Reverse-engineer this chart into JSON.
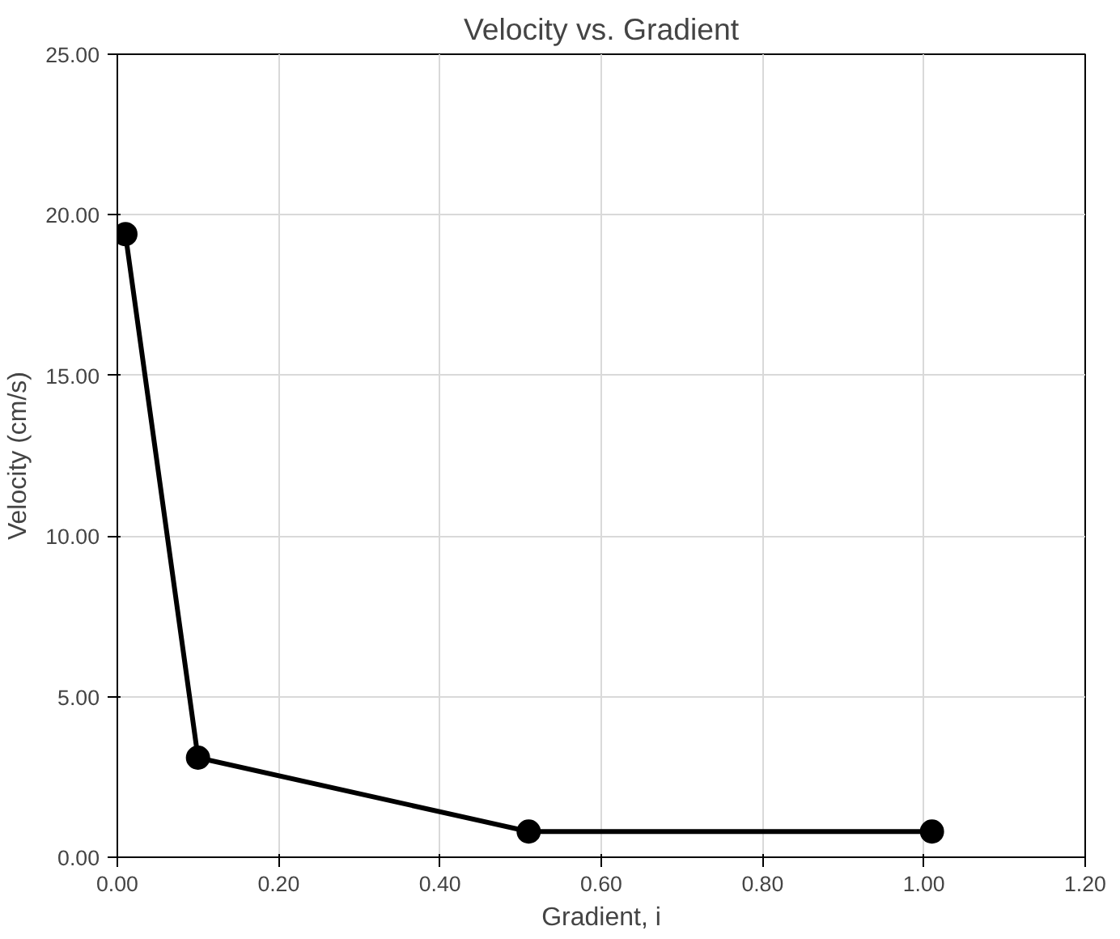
{
  "chart_data": {
    "type": "line",
    "title": "Velocity vs. Gradient",
    "xlabel": "Gradient, i",
    "ylabel": "Velocity (cm/s)",
    "x": [
      0.01,
      0.1,
      0.51,
      1.01
    ],
    "series": [
      {
        "color": "#000000",
        "values": [
          19.4,
          3.1,
          0.8,
          0.8
        ]
      }
    ],
    "marker": "circle",
    "line_style": "solid",
    "grid": true,
    "xlim": [
      0,
      1.2
    ],
    "xticks": [
      {
        "value": 0,
        "label": "0.00"
      },
      {
        "value": 0.2,
        "label": "0.20"
      },
      {
        "value": 0.4,
        "label": "0.40"
      },
      {
        "value": 0.6,
        "label": "0.60"
      },
      {
        "value": 0.8,
        "label": "0.80"
      },
      {
        "value": 1.0,
        "label": "1.00"
      },
      {
        "value": 1.2,
        "label": "1.20"
      }
    ],
    "ylim": [
      0,
      25
    ],
    "yticks": [
      {
        "value": 0,
        "label": "0.00"
      },
      {
        "value": 5,
        "label": "5.00"
      },
      {
        "value": 10,
        "label": "10.00"
      },
      {
        "value": 15,
        "label": "15.00"
      },
      {
        "value": 20,
        "label": "20.00"
      },
      {
        "value": 25,
        "label": "25.00"
      }
    ]
  }
}
